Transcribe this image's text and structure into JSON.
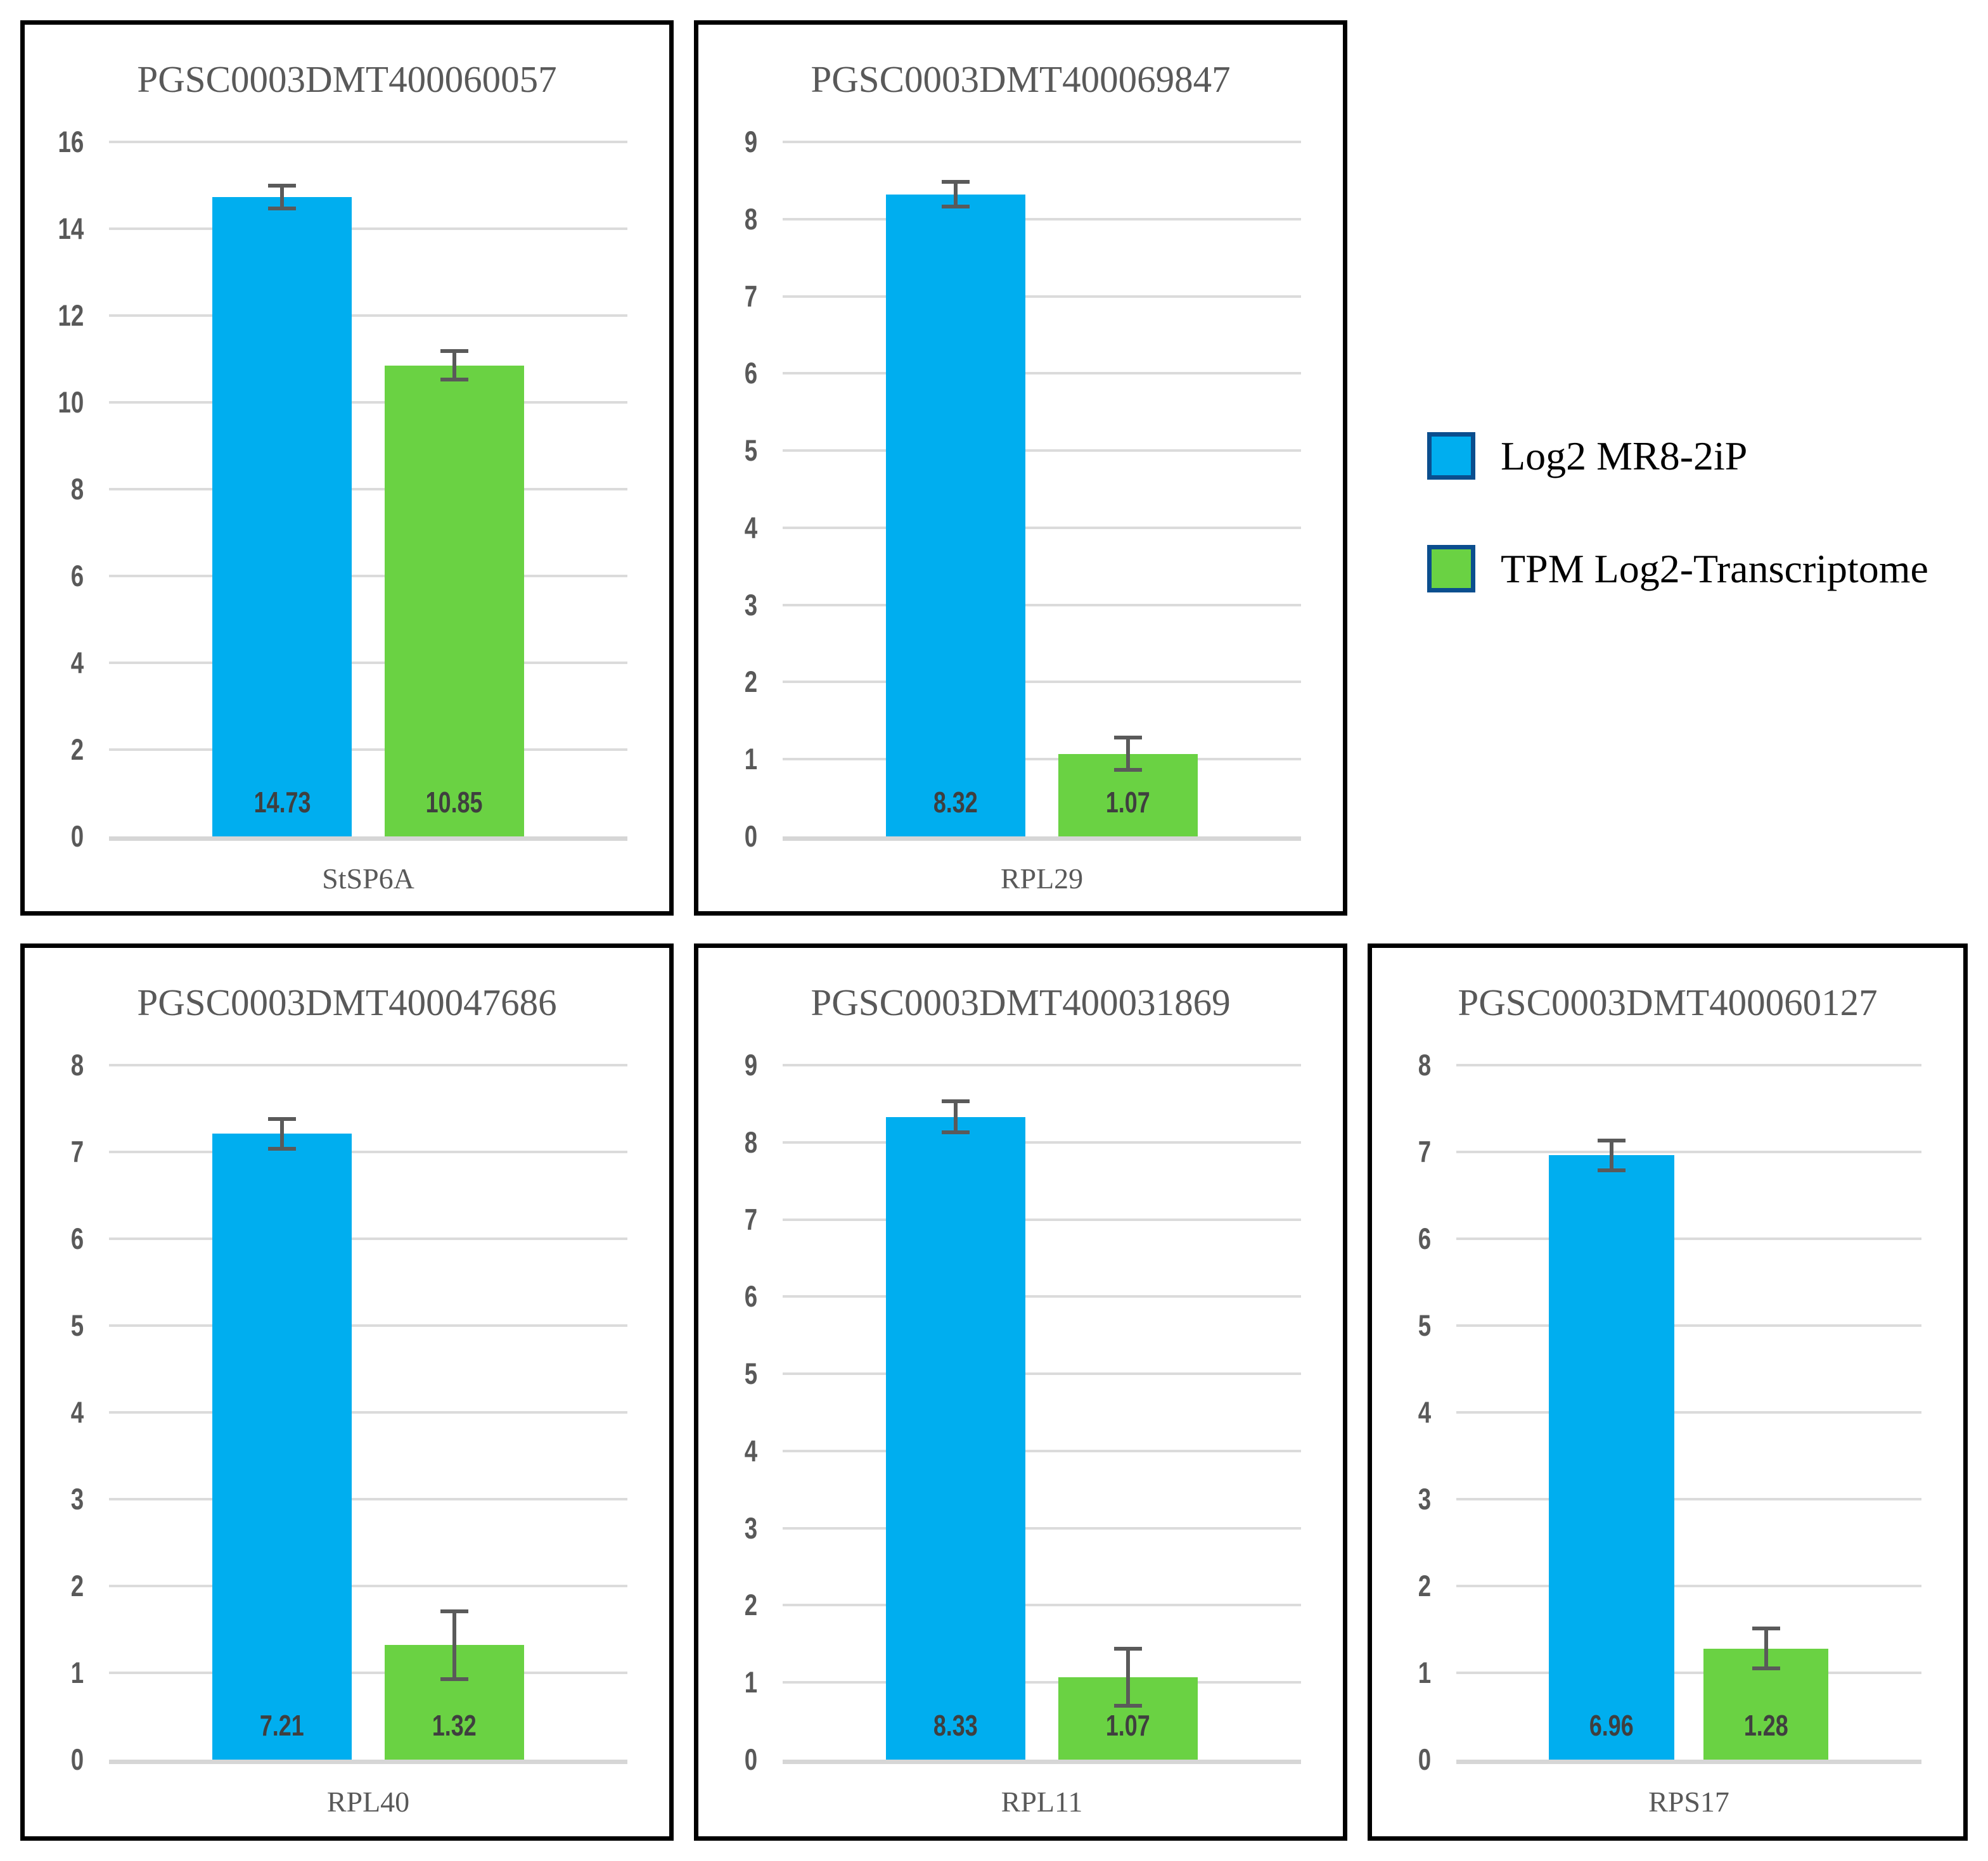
{
  "legend": {
    "items": [
      {
        "label": "Log2 MR8-2iP",
        "color": "#00AEEF"
      },
      {
        "label": "TPM Log2-Transcriptome",
        "color": "#6AD243"
      }
    ],
    "swatch_border_color": "#0B4E8E",
    "position": "figure-top-right"
  },
  "style": {
    "frame_color": "#000000",
    "title_color": "#595959",
    "tick_color": "#595959",
    "value_label_color": "#3F3F3F",
    "gridline_color": "#DBDBDB",
    "error_bar_color": "#5A5A5A",
    "background": "#FFFFFF"
  },
  "chart_data": [
    {
      "type": "bar",
      "title": "PGSC0003DMT400060057",
      "categories": [
        "StSP6A"
      ],
      "series": [
        {
          "name": "Log2 MR8-2iP",
          "values": [
            14.73
          ],
          "errors": [
            0.26
          ],
          "display": [
            "14.73"
          ]
        },
        {
          "name": "TPM Log2-Transcriptome",
          "values": [
            10.85
          ],
          "errors": [
            0.33
          ],
          "display": [
            "10.85"
          ]
        }
      ],
      "xlabel": "StSP6A",
      "ylabel": "",
      "ylim": [
        0,
        16
      ],
      "ytick_step": 2,
      "grid": true
    },
    {
      "type": "bar",
      "title": "PGSC0003DMT400069847",
      "categories": [
        "RPL29"
      ],
      "series": [
        {
          "name": "Log2 MR8-2iP",
          "values": [
            8.32
          ],
          "errors": [
            0.16
          ],
          "display": [
            "8.32"
          ]
        },
        {
          "name": "TPM Log2-Transcriptome",
          "values": [
            1.07
          ],
          "errors": [
            0.21
          ],
          "display": [
            "1.07"
          ]
        }
      ],
      "xlabel": "RPL29",
      "ylabel": "",
      "ylim": [
        0,
        9
      ],
      "ytick_step": 1,
      "grid": true
    },
    {
      "type": "bar",
      "title": "PGSC0003DMT400047686",
      "categories": [
        "RPL40"
      ],
      "series": [
        {
          "name": "Log2 MR8-2iP",
          "values": [
            7.21
          ],
          "errors": [
            0.17
          ],
          "display": [
            "7.21"
          ]
        },
        {
          "name": "TPM Log2-Transcriptome",
          "values": [
            1.32
          ],
          "errors": [
            0.39
          ],
          "display": [
            "1.32"
          ]
        }
      ],
      "xlabel": "RPL40",
      "ylabel": "",
      "ylim": [
        0,
        8
      ],
      "ytick_step": 1,
      "grid": true
    },
    {
      "type": "bar",
      "title": "PGSC0003DMT400031869",
      "categories": [
        "RPL11"
      ],
      "series": [
        {
          "name": "Log2 MR8-2iP",
          "values": [
            8.33
          ],
          "errors": [
            0.2
          ],
          "display": [
            "8.33"
          ]
        },
        {
          "name": "TPM Log2-Transcriptome",
          "values": [
            1.07
          ],
          "errors": [
            0.37
          ],
          "display": [
            "1.07"
          ]
        }
      ],
      "xlabel": "RPL11",
      "ylabel": "",
      "ylim": [
        0,
        9
      ],
      "ytick_step": 1,
      "grid": true
    },
    {
      "type": "bar",
      "title": "PGSC0003DMT400060127",
      "categories": [
        "RPS17"
      ],
      "series": [
        {
          "name": "Log2 MR8-2iP",
          "values": [
            6.96
          ],
          "errors": [
            0.17
          ],
          "display": [
            "6.96"
          ]
        },
        {
          "name": "TPM Log2-Transcriptome",
          "values": [
            1.28
          ],
          "errors": [
            0.23
          ],
          "display": [
            "1.28"
          ]
        }
      ],
      "xlabel": "RPS17",
      "ylabel": "",
      "ylim": [
        0,
        8
      ],
      "ytick_step": 1,
      "grid": true
    }
  ]
}
